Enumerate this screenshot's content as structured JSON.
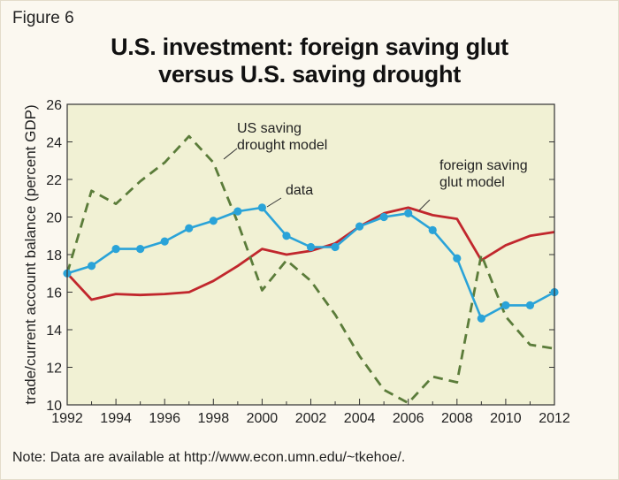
{
  "figure_label": "Figure 6",
  "title_line1": "U.S. investment: foreign saving glut",
  "title_line2": "versus U.S. saving drought",
  "note": "Note: Data are available at http://www.econ.umn.edu/~tkehoe/.",
  "colors": {
    "plot_bg": "#f1f1d4",
    "data": "#2aa3d8",
    "glut": "#c1272d",
    "drought": "#5b7c3a"
  },
  "chart_data": {
    "type": "line",
    "title": "U.S. investment: foreign saving glut versus U.S. saving drought",
    "xlabel": "",
    "ylabel": "trade/current account balance (percent GDP)",
    "xlim": [
      1992,
      2012
    ],
    "ylim": [
      10,
      26
    ],
    "x_ticks": [
      "1992",
      "1994",
      "1996",
      "1998",
      "2000",
      "2002",
      "2004",
      "2006",
      "2008",
      "2010",
      "2012"
    ],
    "y_ticks": [
      "10",
      "12",
      "14",
      "16",
      "18",
      "20",
      "22",
      "24",
      "26"
    ],
    "grid": false,
    "x": [
      1992,
      1993,
      1994,
      1995,
      1996,
      1997,
      1998,
      1999,
      2000,
      2001,
      2002,
      2003,
      2004,
      2005,
      2006,
      2007,
      2008,
      2009,
      2010,
      2011,
      2012
    ],
    "series": [
      {
        "name": "data",
        "values": [
          17.0,
          17.4,
          18.3,
          18.3,
          18.7,
          19.4,
          19.8,
          20.3,
          20.5,
          19.0,
          18.4,
          18.4,
          19.5,
          20.0,
          20.2,
          19.3,
          17.8,
          14.6,
          15.3,
          15.3,
          16.0
        ]
      },
      {
        "name": "foreign saving glut model",
        "values": [
          17.0,
          15.6,
          15.9,
          15.85,
          15.9,
          16.0,
          16.6,
          17.4,
          18.3,
          18.0,
          18.2,
          18.6,
          19.5,
          20.2,
          20.5,
          20.1,
          19.9,
          17.7,
          18.5,
          19.0,
          19.2
        ]
      },
      {
        "name": "US saving drought model",
        "values": [
          17.0,
          21.4,
          20.7,
          21.9,
          22.9,
          24.3,
          22.9,
          19.7,
          16.1,
          17.7,
          16.6,
          14.8,
          12.6,
          10.8,
          10.1,
          11.5,
          11.2,
          18.0,
          14.7,
          13.2,
          13.0
        ]
      }
    ],
    "annotations": [
      {
        "series": "US saving drought model",
        "lines": [
          "US saving",
          "drought model"
        ]
      },
      {
        "series": "data",
        "lines": [
          "data"
        ]
      },
      {
        "series": "foreign saving glut model",
        "lines": [
          "foreign saving",
          "glut model"
        ]
      }
    ]
  }
}
